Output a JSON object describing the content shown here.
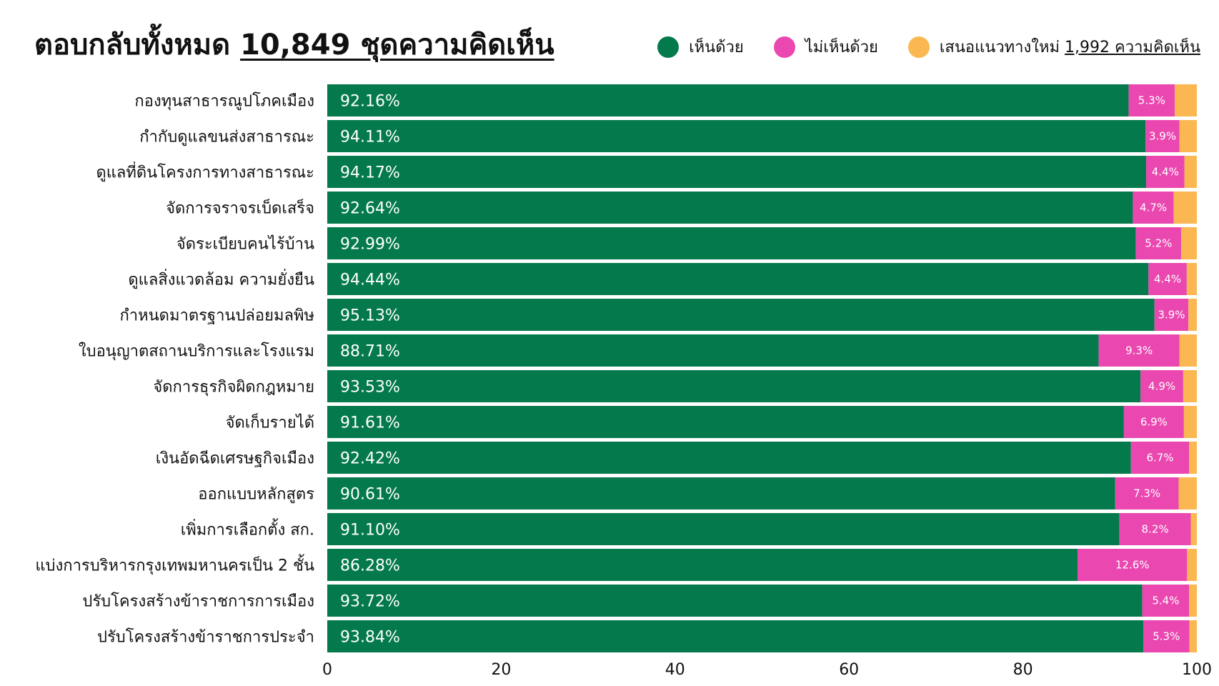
{
  "header": {
    "title_prefix": "ตอบกลับทั้งหมด",
    "title_count": "10,849 ชุดความคิดเห็น"
  },
  "legend": {
    "agree": "เห็นด้วย",
    "disagree": "ไม่เห็นด้วย",
    "propose_prefix": "เสนอแนวทางใหม่",
    "propose_count": "1,992 ความคิดเห็น"
  },
  "colors": {
    "agree": "#047a4c",
    "disagree": "#ea48b0",
    "propose": "#fbb752"
  },
  "chart_data": {
    "type": "bar",
    "orientation": "horizontal",
    "stacked": true,
    "title": "ตอบกลับทั้งหมด 10,849 ชุดความคิดเห็น",
    "xlim": [
      0,
      100
    ],
    "xticks": [
      0,
      20,
      40,
      60,
      80,
      100
    ],
    "legend_position": "top-right",
    "categories": [
      "กองทุนสาธารณูปโภคเมือง",
      "กำกับดูแลขนส่งสาธารณะ",
      "ดูแลที่ดินโครงการทางสาธารณะ",
      "จัดการจราจรเบ็ดเสร็จ",
      "จัดระเบียบคนไร้บ้าน",
      "ดูแลสิ่งแวดล้อม ความยั่งยืน",
      "กำหนดมาตรฐานปล่อยมลพิษ",
      "ใบอนุญาตสถานบริการและโรงแรม",
      "จัดการธุรกิจผิดกฎหมาย",
      "จัดเก็บรายได้",
      "เงินอัดฉีดเศรษฐกิจเมือง",
      "ออกแบบหลักสูตร",
      "เพิ่มการเลือกตั้ง สก.",
      "แบ่งการบริหารกรุงเทพมหานครเป็น 2 ชั้น",
      "ปรับโครงสร้างข้าราชการการเมือง",
      "ปรับโครงสร้างข้าราชการประจำ"
    ],
    "series": [
      {
        "name": "เห็นด้วย",
        "values": [
          92.16,
          94.11,
          94.17,
          92.64,
          92.99,
          94.44,
          95.13,
          88.71,
          93.53,
          91.61,
          92.42,
          90.61,
          91.1,
          86.28,
          93.72,
          93.84
        ],
        "labels": [
          "92.16%",
          "94.11%",
          "94.17%",
          "92.64%",
          "92.99%",
          "94.44%",
          "95.13%",
          "88.71%",
          "93.53%",
          "91.61%",
          "92.42%",
          "90.61%",
          "91.10%",
          "86.28%",
          "93.72%",
          "93.84%"
        ]
      },
      {
        "name": "ไม่เห็นด้วย",
        "values": [
          5.3,
          3.9,
          4.4,
          4.7,
          5.2,
          4.4,
          3.9,
          9.3,
          4.9,
          6.9,
          6.7,
          7.3,
          8.2,
          12.6,
          5.4,
          5.3
        ],
        "labels": [
          "5.3%",
          "3.9%",
          "4.4%",
          "4.7%",
          "5.2%",
          "4.4%",
          "3.9%",
          "9.3%",
          "4.9%",
          "6.9%",
          "6.7%",
          "7.3%",
          "8.2%",
          "12.6%",
          "5.4%",
          "5.3%"
        ]
      },
      {
        "name": "เสนอแนวทางใหม่",
        "values": [
          2.54,
          1.99,
          1.43,
          2.66,
          1.81,
          1.16,
          0.97,
          1.99,
          1.57,
          1.49,
          0.88,
          2.09,
          0.7,
          1.12,
          0.88,
          0.86
        ]
      }
    ]
  }
}
